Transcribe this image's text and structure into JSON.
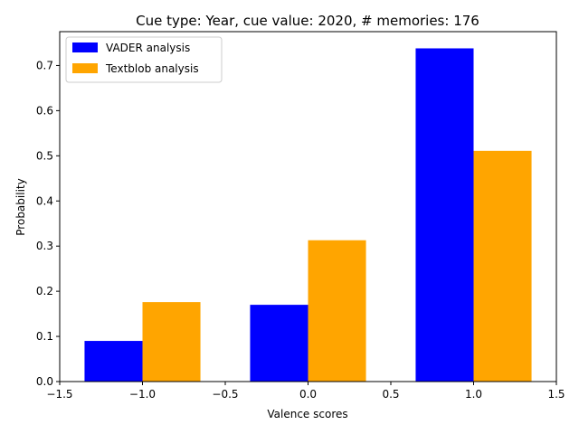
{
  "chart_data": {
    "type": "bar",
    "title": "Cue type: Year, cue value: 2020, # memories: 176",
    "xlabel": "Valence scores",
    "ylabel": "Probability",
    "xlim": [
      -1.5,
      1.5
    ],
    "ylim": [
      0,
      0.775
    ],
    "xticks": [
      -1.5,
      -1.0,
      -0.5,
      0.0,
      0.5,
      1.0,
      1.5
    ],
    "xtick_labels": [
      "−1.5",
      "−1.0",
      "−0.5",
      "0.0",
      "0.5",
      "1.0",
      "1.5"
    ],
    "yticks": [
      0.0,
      0.1,
      0.2,
      0.3,
      0.4,
      0.5,
      0.6,
      0.7
    ],
    "ytick_labels": [
      "0.0",
      "0.1",
      "0.2",
      "0.3",
      "0.4",
      "0.5",
      "0.6",
      "0.7"
    ],
    "categories": [
      -1,
      0,
      1
    ],
    "bar_width": 0.35,
    "grid": false,
    "legend_position": "upper-left",
    "series": [
      {
        "name": "VADER analysis",
        "color": "#0000ff",
        "values": [
          0.09,
          0.17,
          0.738
        ],
        "offset": -0.175
      },
      {
        "name": "Textblob analysis",
        "color": "#ffa500",
        "values": [
          0.176,
          0.313,
          0.511
        ],
        "offset": 0.175
      }
    ]
  }
}
